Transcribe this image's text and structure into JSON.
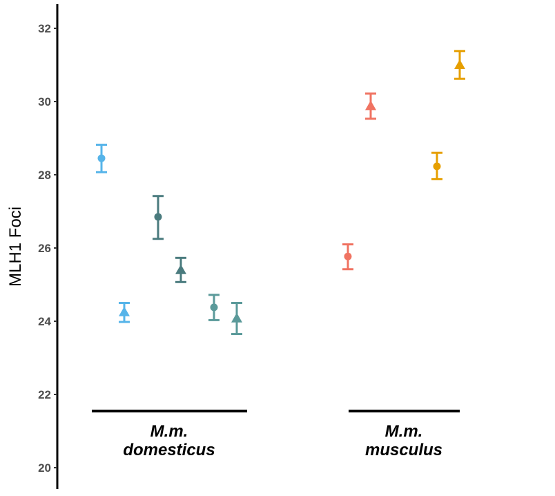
{
  "chart_data": {
    "type": "scatter",
    "title": "",
    "xlabel": "",
    "ylabel": "MLH1 Foci",
    "ylim": [
      20,
      32.6
    ],
    "yticks": [
      20,
      22,
      24,
      26,
      28,
      30,
      32
    ],
    "grid": false,
    "groups": [
      {
        "label_line1": "M.m.",
        "label_line2": "domesticus"
      },
      {
        "label_line1": "M.m.",
        "label_line2": "musculus"
      }
    ],
    "points": [
      {
        "group": 0,
        "slot": 0,
        "shape": "circle",
        "y": 28.45,
        "ymin": 28.07,
        "ymax": 28.82,
        "color": "#56B4E9"
      },
      {
        "group": 0,
        "slot": 1,
        "shape": "triangle",
        "y": 24.25,
        "ymin": 23.98,
        "ymax": 24.5,
        "color": "#56B4E9"
      },
      {
        "group": 0,
        "slot": 2,
        "shape": "circle",
        "y": 26.85,
        "ymin": 26.25,
        "ymax": 27.42,
        "color": "#4A7B7E"
      },
      {
        "group": 0,
        "slot": 3,
        "shape": "triangle",
        "y": 25.4,
        "ymin": 25.07,
        "ymax": 25.73,
        "color": "#4A7B7E"
      },
      {
        "group": 0,
        "slot": 4,
        "shape": "circle",
        "y": 24.38,
        "ymin": 24.03,
        "ymax": 24.72,
        "color": "#5B9A9A"
      },
      {
        "group": 0,
        "slot": 5,
        "shape": "triangle",
        "y": 24.08,
        "ymin": 23.65,
        "ymax": 24.5,
        "color": "#5B9A9A"
      },
      {
        "group": 1,
        "slot": 0,
        "shape": "circle",
        "y": 25.77,
        "ymin": 25.42,
        "ymax": 26.1,
        "color": "#F07362"
      },
      {
        "group": 1,
        "slot": 1,
        "shape": "triangle",
        "y": 29.88,
        "ymin": 29.53,
        "ymax": 30.22,
        "color": "#F07362"
      },
      {
        "group": 1,
        "slot": 2,
        "shape": "circle",
        "y": 28.23,
        "ymin": 27.88,
        "ymax": 28.6,
        "color": "#E69F00"
      },
      {
        "group": 1,
        "slot": 3,
        "shape": "triangle",
        "y": 31.0,
        "ymin": 30.62,
        "ymax": 31.38,
        "color": "#E69F00"
      }
    ]
  }
}
